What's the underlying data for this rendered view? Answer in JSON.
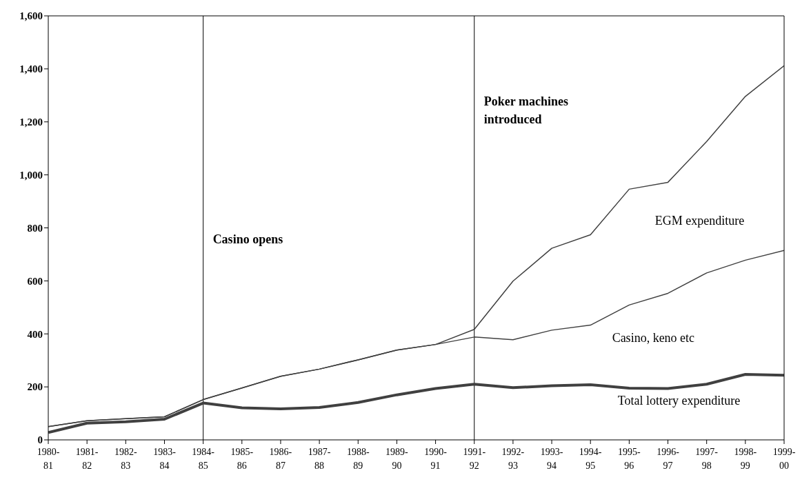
{
  "chart_data": {
    "type": "line",
    "categories": [
      "1980-81",
      "1981-82",
      "1982-83",
      "1983-84",
      "1984-85",
      "1985-86",
      "1986-87",
      "1987-88",
      "1988-89",
      "1989-90",
      "1990-91",
      "1991-92",
      "1992-93",
      "1993-94",
      "1994-95",
      "1995-96",
      "1996-97",
      "1997-98",
      "1998-99",
      "1999-00"
    ],
    "series": [
      {
        "name": "EGM expenditure",
        "color": "#404040",
        "values": [
          50,
          72,
          80,
          87,
          152,
          196,
          240,
          267,
          302,
          339,
          360,
          417,
          599,
          723,
          774,
          946,
          972,
          1126,
          1296,
          1412
        ]
      },
      {
        "name": "Casino, keno etc",
        "color": "#404040",
        "values": [
          50,
          72,
          80,
          87,
          152,
          196,
          240,
          267,
          302,
          339,
          360,
          388,
          378,
          414,
          433,
          509,
          553,
          630,
          678,
          715
        ]
      },
      {
        "name": "Total lottery expenditure",
        "color": "#404040",
        "values": [
          28,
          63,
          68,
          78,
          139,
          121,
          117,
          122,
          141,
          170,
          194,
          210,
          197,
          204,
          208,
          195,
          194,
          210,
          247,
          244
        ]
      }
    ],
    "ylim": [
      0,
      1600
    ],
    "yticks": [
      {
        "value": 0,
        "label": "0"
      },
      {
        "value": 200,
        "label": "200"
      },
      {
        "value": 400,
        "label": "400"
      },
      {
        "value": 600,
        "label": "600"
      },
      {
        "value": 800,
        "label": "800"
      },
      {
        "value": 1000,
        "label": "1,000"
      },
      {
        "value": 1200,
        "label": "1,200"
      },
      {
        "value": 1400,
        "label": "1,400"
      },
      {
        "value": 1600,
        "label": "1,600"
      }
    ],
    "ref_lines": [
      {
        "axis": "x",
        "value": "1984-85",
        "label": "Casino opens",
        "color": "#000000"
      },
      {
        "axis": "x",
        "value": "1991-92",
        "label": "Poker machines introduced",
        "color": "#000000"
      }
    ],
    "grid": false,
    "legend": false,
    "marker": "none",
    "line_style": "solid"
  }
}
